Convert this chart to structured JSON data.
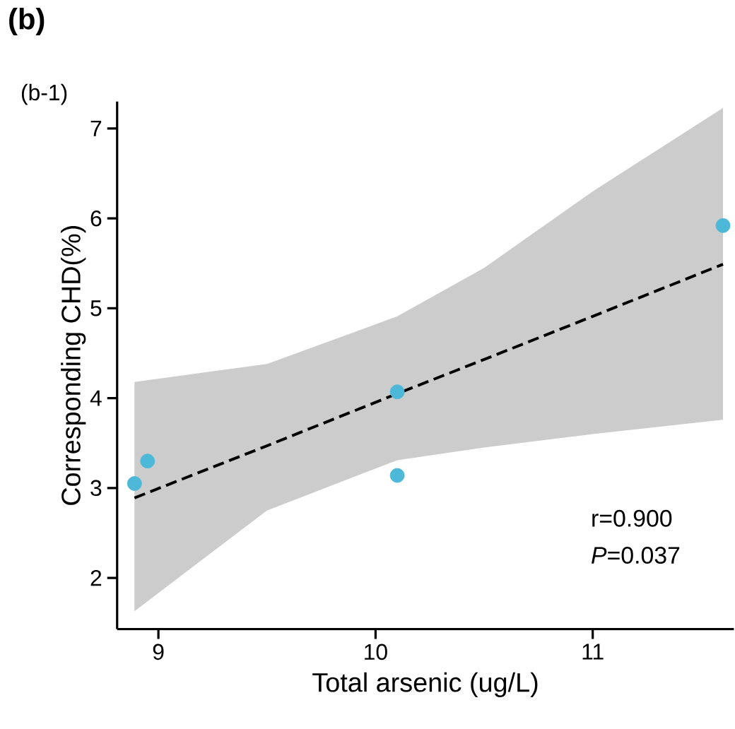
{
  "chart_data": {
    "type": "scatter",
    "title": "(b)",
    "subtitle": "(b-1)",
    "xlabel": "Total arsenic (ug/L)",
    "ylabel": "Corresponding CHD(%)",
    "xlim": [
      8.81,
      11.65
    ],
    "ylim": [
      1.43,
      7.3
    ],
    "xticks": [
      9,
      10,
      11
    ],
    "yticks": [
      2,
      3,
      4,
      5,
      6,
      7
    ],
    "grid": false,
    "series": [
      {
        "marker": "circle",
        "color": "#4db8d8",
        "x": [
          8.89,
          8.95,
          10.1,
          10.1,
          11.6
        ],
        "values": [
          3.05,
          3.3,
          4.07,
          3.14,
          5.92
        ]
      },
      {
        "type": "line",
        "marker": "none",
        "color": "#000000",
        "line_style": "dashed",
        "x": [
          8.89,
          9.5,
          10.1,
          10.5,
          11,
          11.6
        ],
        "values": [
          2.89,
          3.47,
          4.05,
          4.43,
          4.91,
          5.49
        ],
        "lower": [
          1.63,
          2.75,
          3.31,
          3.45,
          3.6,
          3.76
        ],
        "upper": [
          4.18,
          4.38,
          4.91,
          5.45,
          6.3,
          7.23
        ]
      }
    ],
    "annotations": [
      "r=0.900",
      "*P*=0.037"
    ]
  }
}
